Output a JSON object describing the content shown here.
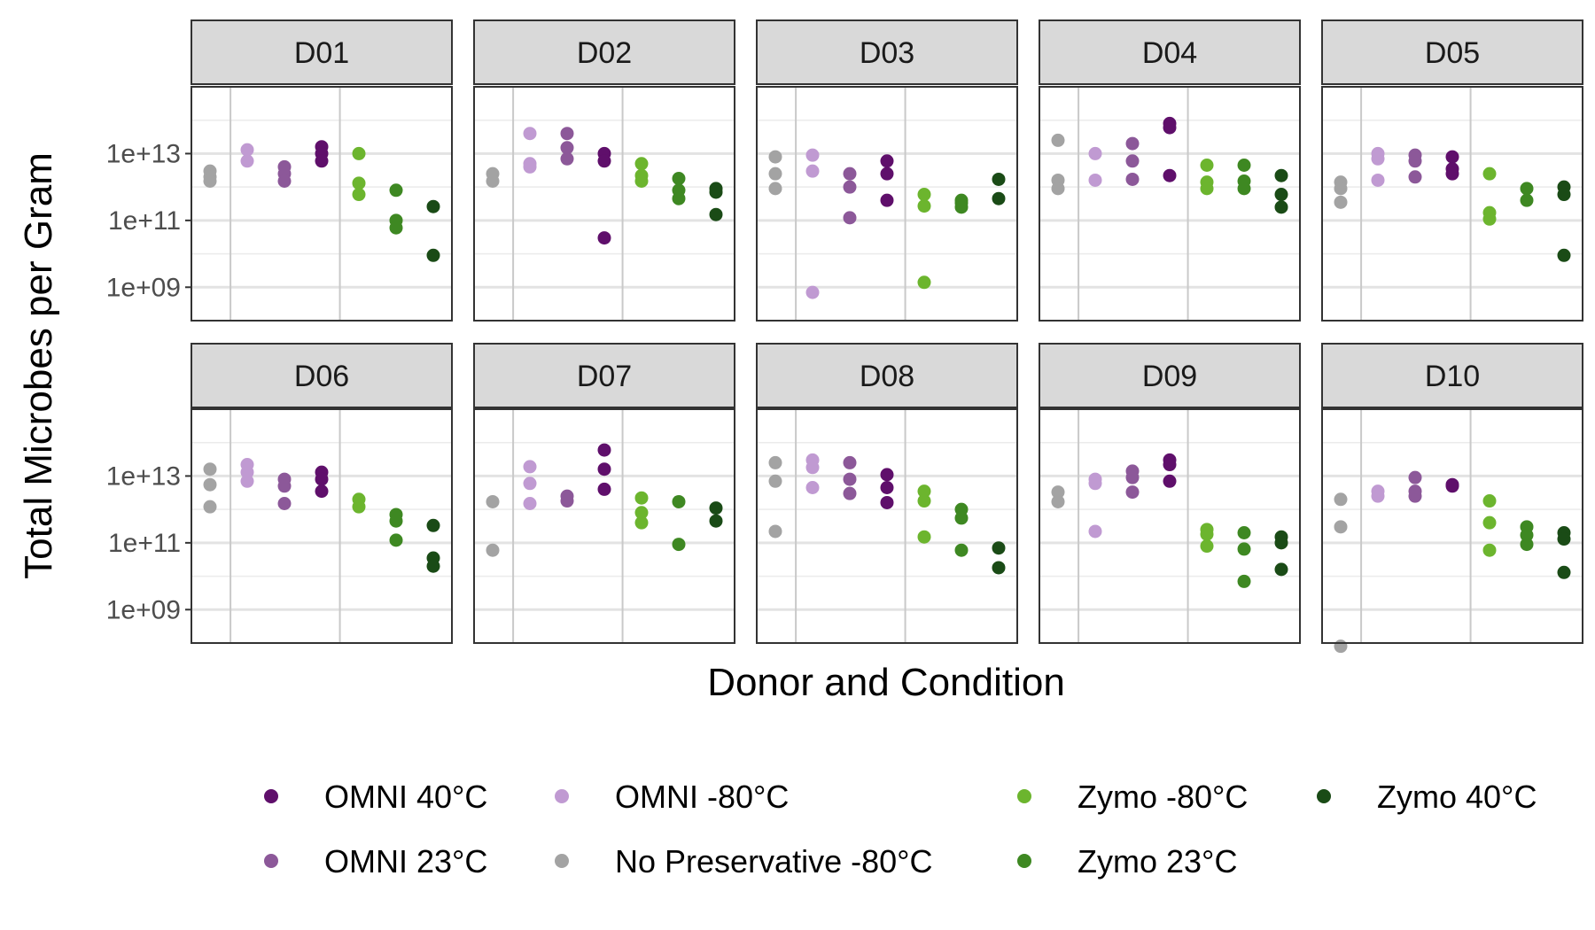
{
  "chart_data": {
    "type": "scatter",
    "facet_layout": "2 rows x 5 columns",
    "ylabel": "Total Microbes per Gram",
    "xlabel": "Donor and Condition",
    "y_scale": "log10",
    "ylim": [
      100000000.0,
      1000000000000000.0
    ],
    "y_ticks": [
      {
        "value": 1000000000.0,
        "label": "1e+09"
      },
      {
        "value": 100000000000.0,
        "label": "1e+11"
      },
      {
        "value": 10000000000000.0,
        "label": "1e+13"
      }
    ],
    "x_order": [
      "No Preservative -80°C",
      "OMNI -80°C",
      "OMNI 23°C",
      "OMNI 40°C",
      "Zymo -80°C",
      "Zymo 23°C",
      "Zymo 40°C"
    ],
    "grid": true,
    "legend_position": "bottom",
    "series": [
      {
        "name": "OMNI 40°C",
        "color": "#5f0f6b"
      },
      {
        "name": "OMNI -80°C",
        "color": "#c09ad2"
      },
      {
        "name": "Zymo -80°C",
        "color": "#6cb52e"
      },
      {
        "name": "Zymo 40°C",
        "color": "#1a4b16"
      },
      {
        "name": "OMNI 23°C",
        "color": "#8c5899"
      },
      {
        "name": "No Preservative -80°C",
        "color": "#a3a3a3"
      },
      {
        "name": "Zymo 23°C",
        "color": "#3e8822"
      }
    ],
    "panels": [
      {
        "donor": "D01",
        "points": {
          "No Preservative -80°C": [
            3000000000000.0,
            2000000000000.0,
            1500000000000.0
          ],
          "OMNI -80°C": [
            13000000000000.0,
            6000000000000.0
          ],
          "OMNI 23°C": [
            4000000000000.0,
            2500000000000.0,
            1500000000000.0
          ],
          "OMNI 40°C": [
            16000000000000.0,
            10000000000000.0,
            6000000000000.0
          ],
          "Zymo -80°C": [
            10000000000000.0,
            1300000000000.0,
            600000000000.0
          ],
          "Zymo 23°C": [
            800000000000.0,
            100000000000.0,
            60000000000.0
          ],
          "Zymo 40°C": [
            260000000000.0,
            9000000000.0
          ]
        }
      },
      {
        "donor": "D02",
        "points": {
          "No Preservative -80°C": [
            2500000000000.0,
            1500000000000.0
          ],
          "OMNI -80°C": [
            40000000000000.0,
            5000000000000.0,
            4000000000000.0
          ],
          "OMNI 23°C": [
            40000000000000.0,
            15000000000000.0,
            7000000000000.0
          ],
          "OMNI 40°C": [
            10000000000000.0,
            6000000000000.0,
            30000000000.0
          ],
          "Zymo -80°C": [
            5000000000000.0,
            2200000000000.0,
            1500000000000.0
          ],
          "Zymo 23°C": [
            1800000000000.0,
            800000000000.0,
            450000000000.0
          ],
          "Zymo 40°C": [
            900000000000.0,
            700000000000.0,
            150000000000.0
          ]
        }
      },
      {
        "donor": "D03",
        "points": {
          "No Preservative -80°C": [
            8000000000000.0,
            2500000000000.0,
            900000000000.0
          ],
          "OMNI -80°C": [
            9000000000000.0,
            3000000000000.0,
            700000000.0
          ],
          "OMNI 23°C": [
            2500000000000.0,
            1000000000000.0,
            120000000000.0
          ],
          "OMNI 40°C": [
            6000000000000.0,
            2500000000000.0,
            400000000000.0
          ],
          "Zymo -80°C": [
            600000000000.0,
            270000000000.0,
            1400000000.0
          ],
          "Zymo 23°C": [
            400000000000.0,
            330000000000.0,
            250000000000.0
          ],
          "Zymo 40°C": [
            1700000000000.0,
            450000000000.0
          ]
        }
      },
      {
        "donor": "D04",
        "points": {
          "No Preservative -80°C": [
            25000000000000.0,
            1600000000000.0,
            900000000000.0
          ],
          "OMNI -80°C": [
            10000000000000.0,
            1600000000000.0
          ],
          "OMNI 23°C": [
            20000000000000.0,
            6000000000000.0,
            1700000000000.0
          ],
          "OMNI 40°C": [
            80000000000000.0,
            60000000000000.0,
            2200000000000.0
          ],
          "Zymo -80°C": [
            4500000000000.0,
            1400000000000.0,
            900000000000.0
          ],
          "Zymo 23°C": [
            4500000000000.0,
            1500000000000.0,
            900000000000.0
          ],
          "Zymo 40°C": [
            2200000000000.0,
            600000000000.0,
            250000000000.0
          ]
        }
      },
      {
        "donor": "D05",
        "points": {
          "No Preservative -80°C": [
            1400000000000.0,
            900000000000.0,
            350000000000.0
          ],
          "OMNI -80°C": [
            10000000000000.0,
            7000000000000.0,
            1600000000000.0
          ],
          "OMNI 23°C": [
            9000000000000.0,
            6000000000000.0,
            2000000000000.0
          ],
          "OMNI 40°C": [
            8000000000000.0,
            3500000000000.0,
            2500000000000.0
          ],
          "Zymo -80°C": [
            2500000000000.0,
            170000000000.0,
            110000000000.0
          ],
          "Zymo 23°C": [
            900000000000.0,
            400000000000.0
          ],
          "Zymo 40°C": [
            1000000000000.0,
            600000000000.0,
            9000000000.0
          ]
        }
      },
      {
        "donor": "D06",
        "points": {
          "No Preservative -80°C": [
            16000000000000.0,
            5500000000000.0,
            1200000000000.0
          ],
          "OMNI -80°C": [
            22000000000000.0,
            13000000000000.0,
            7000000000000.0
          ],
          "OMNI 23°C": [
            8000000000000.0,
            5000000000000.0,
            1500000000000.0
          ],
          "OMNI 40°C": [
            13000000000000.0,
            8000000000000.0,
            3500000000000.0
          ],
          "Zymo -80°C": [
            2000000000000.0,
            1200000000000.0
          ],
          "Zymo 23°C": [
            700000000000.0,
            450000000000.0,
            120000000000.0
          ],
          "Zymo 40°C": [
            330000000000.0,
            35000000000.0,
            20000000000.0
          ]
        }
      },
      {
        "donor": "D07",
        "points": {
          "No Preservative -80°C": [
            1700000000000.0,
            60000000000.0
          ],
          "OMNI -80°C": [
            19000000000000.0,
            6000000000000.0,
            1500000000000.0
          ],
          "OMNI 23°C": [
            2500000000000.0,
            1800000000000.0
          ],
          "OMNI 40°C": [
            60000000000000.0,
            16000000000000.0,
            4000000000000.0
          ],
          "Zymo -80°C": [
            2200000000000.0,
            800000000000.0,
            400000000000.0
          ],
          "Zymo 23°C": [
            1700000000000.0,
            90000000000.0
          ],
          "Zymo 40°C": [
            1100000000000.0,
            450000000000.0
          ]
        }
      },
      {
        "donor": "D08",
        "points": {
          "No Preservative -80°C": [
            25000000000000.0,
            7000000000000.0,
            220000000000.0
          ],
          "OMNI -80°C": [
            30000000000000.0,
            18000000000000.0,
            4500000000000.0
          ],
          "OMNI 23°C": [
            25000000000000.0,
            8000000000000.0,
            3000000000000.0
          ],
          "OMNI 40°C": [
            11000000000000.0,
            4500000000000.0,
            1600000000000.0
          ],
          "Zymo -80°C": [
            3500000000000.0,
            1800000000000.0,
            150000000000.0
          ],
          "Zymo 23°C": [
            1000000000000.0,
            550000000000.0,
            60000000000.0
          ],
          "Zymo 40°C": [
            70000000000.0,
            18000000000.0
          ]
        }
      },
      {
        "donor": "D09",
        "points": {
          "No Preservative -80°C": [
            3300000000000.0,
            1700000000000.0
          ],
          "OMNI -80°C": [
            8000000000000.0,
            6000000000000.0,
            220000000000.0
          ],
          "OMNI 23°C": [
            14000000000000.0,
            9000000000000.0,
            3300000000000.0
          ],
          "OMNI 40°C": [
            30000000000000.0,
            22000000000000.0,
            7000000000000.0
          ],
          "Zymo -80°C": [
            250000000000.0,
            180000000000.0,
            80000000000.0
          ],
          "Zymo 23°C": [
            200000000000.0,
            65000000000.0,
            7000000000.0
          ],
          "Zymo 40°C": [
            150000000000.0,
            100000000000.0,
            16000000000.0
          ]
        }
      },
      {
        "donor": "D10",
        "points": {
          "No Preservative -80°C": [
            2000000000000.0,
            300000000000.0,
            80000000.0
          ],
          "OMNI -80°C": [
            3500000000000.0,
            2500000000000.0
          ],
          "OMNI 23°C": [
            9000000000000.0,
            3500000000000.0,
            2500000000000.0
          ],
          "OMNI 40°C": [
            5500000000000.0,
            5000000000000.0
          ],
          "Zymo -80°C": [
            1800000000000.0,
            400000000000.0,
            60000000000.0
          ],
          "Zymo 23°C": [
            300000000000.0,
            170000000000.0,
            90000000000.0
          ],
          "Zymo 40°C": [
            200000000000.0,
            130000000000.0,
            13000000000.0
          ]
        }
      }
    ]
  }
}
